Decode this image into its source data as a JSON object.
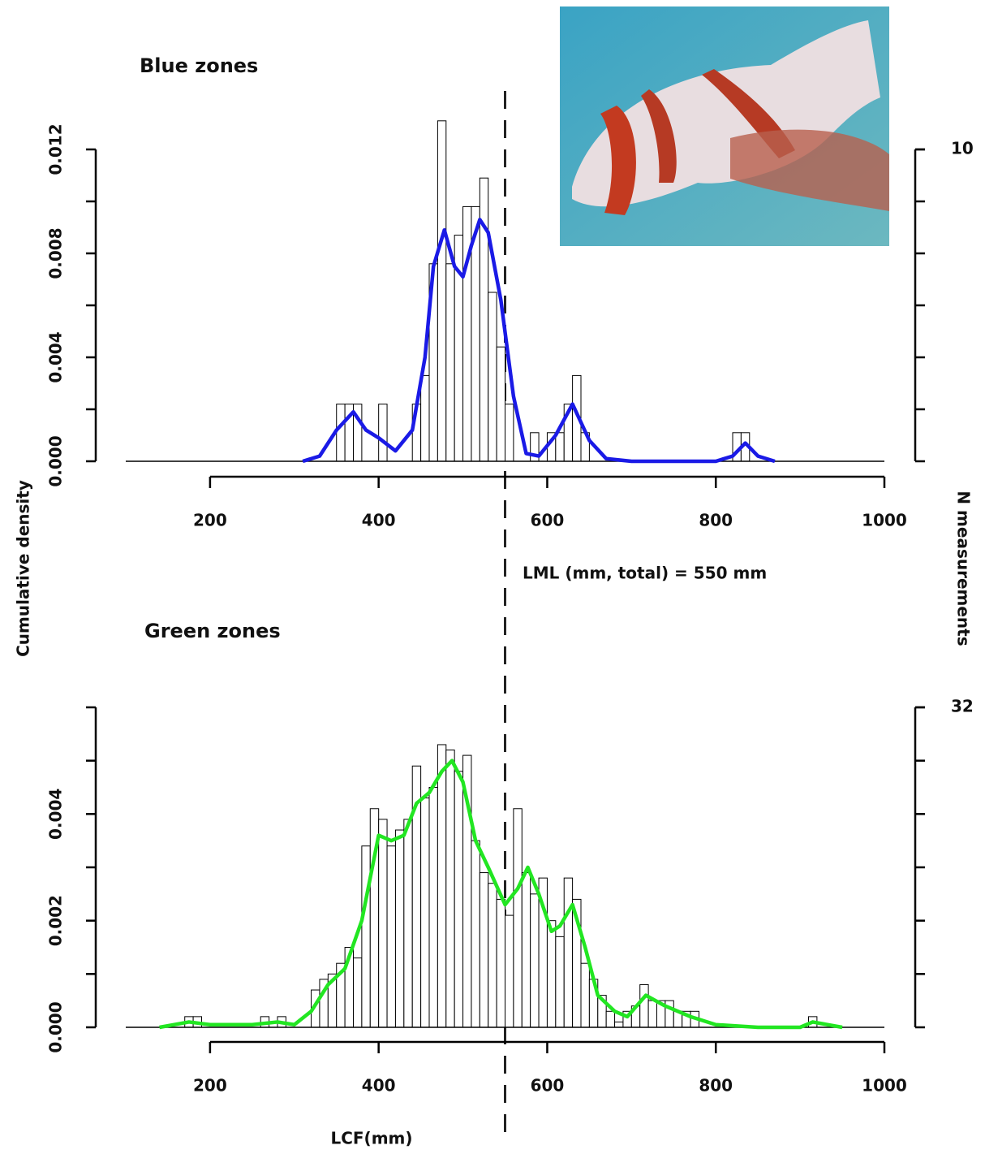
{
  "chart_data": [
    {
      "type": "histogram",
      "title": "Blue zones",
      "ylabel": "Cumulative density",
      "y2label": "N measurements",
      "annotation": "LML (mm, total) = 550 mm",
      "vline": 550,
      "xlim": [
        100,
        1000
      ],
      "xticks": [
        200,
        400,
        600,
        800,
        1000
      ],
      "ylim": [
        0,
        0.012
      ],
      "yticks": [
        {
          "value": 0,
          "label": "0.000"
        },
        {
          "value": 0.004,
          "label": "0.004"
        },
        {
          "value": 0.008,
          "label": "0.008"
        },
        {
          "value": 0.012,
          "label": "0.012"
        }
      ],
      "yminorticks": [
        0.002,
        0.006,
        0.01
      ],
      "y2lim": [
        0,
        10
      ],
      "y2ticks": [
        10
      ],
      "bins": [
        350,
        360,
        370,
        380,
        390,
        400,
        410,
        420,
        430,
        440,
        450,
        460,
        470,
        480,
        490,
        500,
        510,
        520,
        530,
        540,
        550,
        560,
        570,
        580,
        590,
        600,
        610,
        620,
        630,
        640,
        650,
        660,
        670,
        680,
        690,
        700,
        710,
        720,
        730,
        740,
        750,
        760,
        770,
        780,
        790,
        800,
        810,
        820,
        830,
        840
      ],
      "values": [
        0.0022,
        0.0022,
        0.0022,
        0,
        0,
        0.0022,
        0,
        0,
        0,
        0.0022,
        0.0033,
        0.0076,
        0.0131,
        0.0076,
        0.0087,
        0.0098,
        0.0098,
        0.0109,
        0.0065,
        0.0044,
        0.0022,
        0,
        0,
        0.0011,
        0,
        0.0011,
        0.0011,
        0.0022,
        0.0033,
        0.0011,
        0,
        0,
        0,
        0,
        0,
        0,
        0,
        0,
        0,
        0,
        0,
        0,
        0,
        0,
        0,
        0,
        0,
        0.0011,
        0.0011
      ],
      "density": {
        "color": "#1a1ae6",
        "x": [
          310,
          330,
          350,
          370,
          385,
          400,
          420,
          440,
          455,
          465,
          478,
          490,
          500,
          510,
          520,
          530,
          545,
          560,
          575,
          590,
          610,
          630,
          650,
          670,
          700,
          800,
          820,
          835,
          850,
          870
        ],
        "values": [
          0,
          0.0002,
          0.0012,
          0.0019,
          0.0012,
          0.0009,
          0.0004,
          0.0012,
          0.004,
          0.0075,
          0.0089,
          0.0075,
          0.0071,
          0.0083,
          0.0093,
          0.0088,
          0.0062,
          0.0025,
          0.0003,
          0.0002,
          0.001,
          0.0022,
          0.0008,
          0.0001,
          0,
          0,
          0.0002,
          0.0007,
          0.0002,
          0
        ]
      }
    },
    {
      "type": "histogram",
      "title": "Green zones",
      "xlabel": "LCF(mm)",
      "xlim": [
        100,
        1000
      ],
      "xticks": [
        200,
        400,
        600,
        800,
        1000
      ],
      "ylim": [
        0,
        0.006
      ],
      "yticks": [
        {
          "value": 0,
          "label": "0.000"
        },
        {
          "value": 0.002,
          "label": "0.002"
        },
        {
          "value": 0.004,
          "label": "0.004"
        }
      ],
      "yminorticks": [
        0.001,
        0.003,
        0.005,
        0.006
      ],
      "y2lim": [
        0,
        32
      ],
      "y2ticks": [
        32
      ],
      "bins": [
        170,
        180,
        190,
        200,
        210,
        220,
        230,
        240,
        250,
        260,
        270,
        280,
        290,
        300,
        310,
        320,
        330,
        340,
        350,
        360,
        370,
        380,
        390,
        400,
        410,
        420,
        430,
        440,
        450,
        460,
        470,
        480,
        490,
        500,
        510,
        520,
        530,
        540,
        550,
        560,
        570,
        580,
        590,
        600,
        610,
        620,
        630,
        640,
        650,
        660,
        670,
        680,
        690,
        700,
        710,
        720,
        730,
        740,
        750,
        760,
        770,
        780,
        790,
        800,
        810,
        820,
        830,
        840,
        850,
        860,
        870,
        880,
        890,
        900,
        910,
        920
      ],
      "values": [
        0.0002,
        0.0002,
        0,
        0,
        0,
        0,
        0,
        0,
        0,
        0.0002,
        0,
        0.0002,
        0,
        0,
        0,
        0.0007,
        0.0009,
        0.001,
        0.0012,
        0.0015,
        0.0013,
        0.0034,
        0.0041,
        0.0039,
        0.0034,
        0.0037,
        0.0039,
        0.0049,
        0.0043,
        0.0045,
        0.0053,
        0.0052,
        0.0048,
        0.0051,
        0.0035,
        0.0029,
        0.0027,
        0.0024,
        0.0021,
        0.0041,
        0.0029,
        0.0025,
        0.0028,
        0.002,
        0.0017,
        0.0028,
        0.0024,
        0.0012,
        0.0009,
        0.0006,
        0.0003,
        0.0001,
        0.0003,
        0.0004,
        0.0008,
        0.0005,
        0.0005,
        0.0005,
        0.0003,
        0.0003,
        0.0003,
        0,
        0,
        0,
        0,
        0,
        0,
        0,
        0,
        0,
        0,
        0,
        0,
        0,
        0.0002
      ],
      "density": {
        "color": "#22e622",
        "x": [
          140,
          175,
          200,
          250,
          280,
          300,
          320,
          340,
          360,
          380,
          400,
          415,
          430,
          445,
          460,
          475,
          487,
          500,
          515,
          530,
          550,
          565,
          577,
          590,
          605,
          615,
          630,
          645,
          660,
          680,
          695,
          717,
          740,
          770,
          800,
          850,
          900,
          915,
          950
        ],
        "values": [
          0,
          0.0001,
          5e-05,
          5e-05,
          0.0001,
          5e-05,
          0.0003,
          0.0008,
          0.0011,
          0.002,
          0.0036,
          0.0035,
          0.0036,
          0.0042,
          0.0044,
          0.0048,
          0.005,
          0.0046,
          0.0035,
          0.003,
          0.0023,
          0.0026,
          0.003,
          0.0025,
          0.0018,
          0.0019,
          0.0023,
          0.0015,
          0.0006,
          0.0003,
          0.0002,
          0.0006,
          0.0004,
          0.0002,
          5e-05,
          0,
          0,
          0.0001,
          0
        ]
      }
    }
  ]
}
